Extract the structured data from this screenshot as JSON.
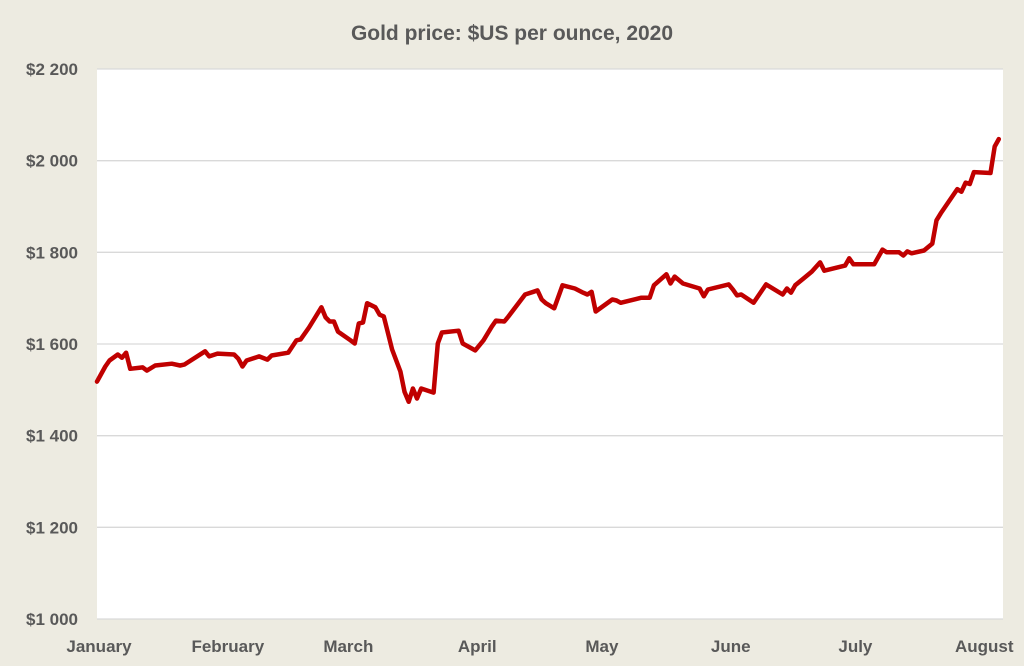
{
  "chart_data": {
    "type": "line",
    "title": "Gold price: $US per ounce, 2020",
    "xlabel": "",
    "ylabel": "",
    "xlim": [
      "2020-01-01",
      "2020-08-06"
    ],
    "ylim": [
      1000,
      2200
    ],
    "yticks": [
      1000,
      1200,
      1400,
      1600,
      1800,
      2000,
      2200
    ],
    "ytick_labels": [
      "$1 000",
      "$1 200",
      "$1 400",
      "$1 600",
      "$1 800",
      "$2 000",
      "$2 200"
    ],
    "xticks": [
      "2020-01-01",
      "2020-02-01",
      "2020-03-01",
      "2020-04-01",
      "2020-05-01",
      "2020-06-01",
      "2020-07-01",
      "2020-08-01"
    ],
    "xtick_labels": [
      "January",
      "February",
      "March",
      "April",
      "May",
      "June",
      "July",
      "August"
    ],
    "grid": "horizontal",
    "legend": "none",
    "colors": {
      "line": "#c00000",
      "background": "#edebe1",
      "plot_background": "#ffffff",
      "grid": "#d9d9d9",
      "text": "#595959"
    },
    "series": [
      {
        "x": [
          "2020-01-01",
          "2020-01-03",
          "2020-01-04",
          "2020-01-06",
          "2020-01-07",
          "2020-01-08",
          "2020-01-09",
          "2020-01-12",
          "2020-01-13",
          "2020-01-15",
          "2020-01-19",
          "2020-01-21",
          "2020-01-22",
          "2020-01-27",
          "2020-01-28",
          "2020-01-30",
          "2020-02-03",
          "2020-02-04",
          "2020-02-05",
          "2020-02-06",
          "2020-02-09",
          "2020-02-11",
          "2020-02-12",
          "2020-02-16",
          "2020-02-18",
          "2020-02-19",
          "2020-02-21",
          "2020-02-24",
          "2020-02-25",
          "2020-02-26",
          "2020-02-27",
          "2020-02-28",
          "2020-03-02",
          "2020-03-03",
          "2020-03-04",
          "2020-03-05",
          "2020-03-06",
          "2020-03-08",
          "2020-03-09",
          "2020-03-10",
          "2020-03-12",
          "2020-03-14",
          "2020-03-15",
          "2020-03-16",
          "2020-03-17",
          "2020-03-18",
          "2020-03-19",
          "2020-03-22",
          "2020-03-23",
          "2020-03-24",
          "2020-03-28",
          "2020-03-29",
          "2020-04-01",
          "2020-04-03",
          "2020-04-05",
          "2020-04-06",
          "2020-04-08",
          "2020-04-09",
          "2020-04-13",
          "2020-04-15",
          "2020-04-16",
          "2020-04-17",
          "2020-04-18",
          "2020-04-20",
          "2020-04-22",
          "2020-04-25",
          "2020-04-27",
          "2020-04-28",
          "2020-04-29",
          "2020-04-30",
          "2020-05-04",
          "2020-05-05",
          "2020-05-06",
          "2020-05-11",
          "2020-05-13",
          "2020-05-14",
          "2020-05-17",
          "2020-05-18",
          "2020-05-19",
          "2020-05-21",
          "2020-05-25",
          "2020-05-26",
          "2020-05-27",
          "2020-06-01",
          "2020-06-02",
          "2020-06-03",
          "2020-06-04",
          "2020-06-07",
          "2020-06-09",
          "2020-06-10",
          "2020-06-14",
          "2020-06-15",
          "2020-06-16",
          "2020-06-17",
          "2020-06-19",
          "2020-06-21",
          "2020-06-23",
          "2020-06-24",
          "2020-06-29",
          "2020-06-30",
          "2020-07-01",
          "2020-07-06",
          "2020-07-08",
          "2020-07-09",
          "2020-07-12",
          "2020-07-13",
          "2020-07-14",
          "2020-07-15",
          "2020-07-18",
          "2020-07-20",
          "2020-07-21",
          "2020-07-22",
          "2020-07-26",
          "2020-07-27",
          "2020-07-28",
          "2020-07-29",
          "2020-07-30",
          "2020-08-03",
          "2020-08-04",
          "2020-08-05"
        ],
        "y": [
          1518,
          1551,
          1564,
          1577,
          1570,
          1581,
          1546,
          1549,
          1542,
          1553,
          1557,
          1553,
          1555,
          1584,
          1573,
          1579,
          1577,
          1568,
          1551,
          1564,
          1573,
          1566,
          1575,
          1581,
          1608,
          1610,
          1636,
          1680,
          1658,
          1649,
          1649,
          1627,
          1608,
          1601,
          1645,
          1647,
          1689,
          1680,
          1664,
          1660,
          1588,
          1540,
          1496,
          1474,
          1503,
          1481,
          1503,
          1494,
          1601,
          1625,
          1629,
          1601,
          1586,
          1608,
          1638,
          1651,
          1649,
          1660,
          1708,
          1714,
          1717,
          1697,
          1689,
          1678,
          1728,
          1721,
          1712,
          1708,
          1714,
          1671,
          1697,
          1695,
          1690,
          1701,
          1701,
          1728,
          1752,
          1732,
          1747,
          1732,
          1721,
          1704,
          1719,
          1730,
          1719,
          1706,
          1708,
          1690,
          1717,
          1730,
          1708,
          1721,
          1712,
          1728,
          1743,
          1758,
          1778,
          1760,
          1771,
          1787,
          1774,
          1774,
          1806,
          1800,
          1800,
          1793,
          1802,
          1798,
          1804,
          1819,
          1870,
          1885,
          1938,
          1932,
          1952,
          1949,
          1975,
          1973,
          2031,
          2047
        ]
      }
    ]
  }
}
